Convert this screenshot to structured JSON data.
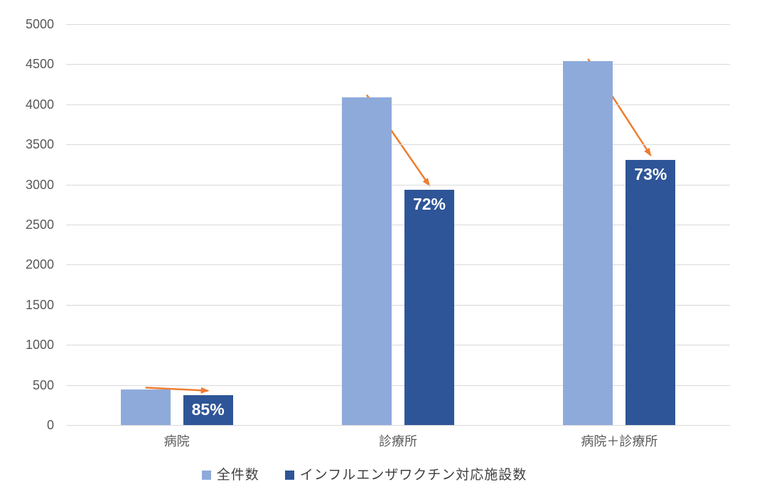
{
  "chart_data": {
    "type": "bar",
    "title": "",
    "xlabel": "",
    "ylabel": "",
    "categories": [
      "病院",
      "診療所",
      "病院＋診療所"
    ],
    "series": [
      {
        "name": "全件数",
        "color": "#8EAADB",
        "values": [
          440,
          4090,
          4540
        ]
      },
      {
        "name": "インフルエンザワクチン対応施設数",
        "color": "#2E5597",
        "values": [
          375,
          2935,
          3310
        ]
      }
    ],
    "bar_labels": {
      "series": "インフルエンザワクチン対応施設数",
      "labels": [
        "85%",
        "72%",
        "73%"
      ],
      "color": "#FFFFFF"
    },
    "annotations": {
      "arrows": {
        "count": 3,
        "color": "#ED7D31",
        "description": "arrow from top of 全件数 bar to top of インフルエンザワクチン対応施設数 bar in each category"
      }
    },
    "ylim": [
      0,
      5000
    ],
    "ytick_step": 500,
    "ytick_labels": [
      "0",
      "500",
      "1000",
      "1500",
      "2000",
      "2500",
      "3000",
      "3500",
      "4000",
      "4500",
      "5000"
    ],
    "grid": true,
    "gridline_color": "#D9D9D9",
    "axis_text_color": "#595959",
    "legend_text_color": "#404040",
    "legend_position": "bottom",
    "background_color": "#FFFFFF"
  }
}
